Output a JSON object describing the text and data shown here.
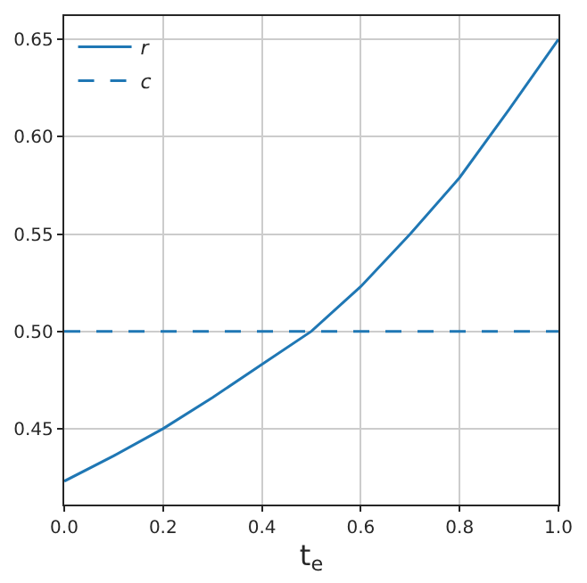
{
  "chart_data": {
    "type": "line",
    "xlabel": "t$_{e}$",
    "x": [
      0,
      0.1,
      0.2,
      0.3,
      0.4,
      0.5,
      0.6,
      0.7,
      0.8,
      0.9,
      1.0
    ],
    "series": [
      {
        "name": "r",
        "color": "#1f77b4",
        "line_style": "solid",
        "values": [
          0.423,
          0.436,
          0.45,
          0.466,
          0.483,
          0.5,
          0.523,
          0.55,
          0.579,
          0.614,
          0.65
        ]
      },
      {
        "name": "c",
        "color": "#1f77b4",
        "line_style": "dashed",
        "x": [
          0,
          1
        ],
        "values": [
          0.5,
          0.5
        ]
      }
    ],
    "xlim": [
      0,
      1
    ],
    "xticks": [
      {
        "value": 0,
        "label": "0.0"
      },
      0.2,
      0.4,
      0.6,
      0.8,
      {
        "value": 1,
        "label": "1.0"
      }
    ],
    "ylim": [
      0.411,
      0.662
    ],
    "yticks": [
      {
        "value": 0.45,
        "label": "0.45"
      },
      {
        "value": 0.5,
        "label": "0.50"
      },
      {
        "value": 0.55,
        "label": "0.55"
      },
      {
        "value": 0.6,
        "label": "0.60"
      },
      {
        "value": 0.65,
        "label": "0.65"
      }
    ],
    "grid": true,
    "legend": "top left",
    "marker": "none"
  }
}
